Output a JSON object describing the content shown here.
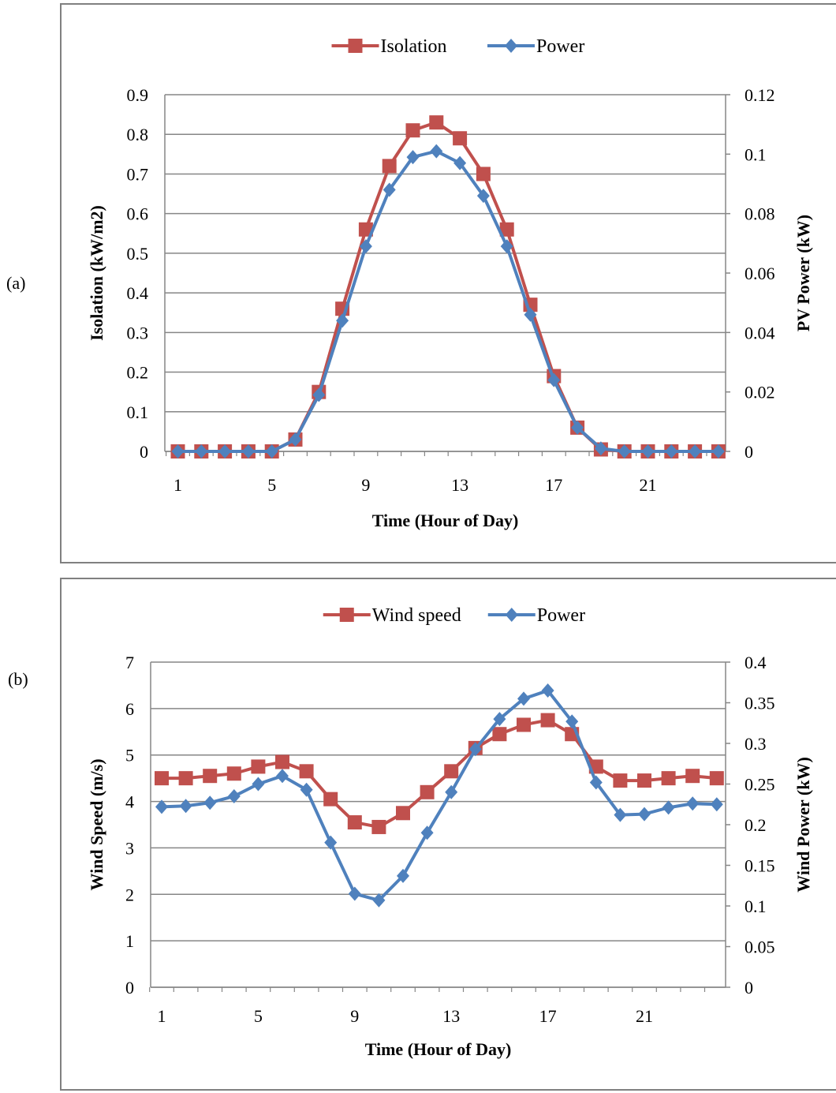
{
  "panels": [
    {
      "label": "(a)",
      "chart_data": {
        "type": "line",
        "title": "",
        "xlabel": "Time (Hour of Day)",
        "ylabel_left": "Isolation (kW/m2)",
        "ylabel_right": "PV Power (kW)",
        "x": [
          1,
          2,
          3,
          4,
          5,
          6,
          7,
          8,
          9,
          10,
          11,
          12,
          13,
          14,
          15,
          16,
          17,
          18,
          19,
          20,
          21,
          22,
          23,
          24
        ],
        "xticks": [
          "1",
          "5",
          "9",
          "13",
          "17",
          "21"
        ],
        "xtick_values": [
          1,
          5,
          9,
          13,
          17,
          21
        ],
        "ylim_left": [
          0,
          0.9
        ],
        "yticks_left": [
          "0",
          "0.1",
          "0.2",
          "0.3",
          "0.4",
          "0.5",
          "0.6",
          "0.7",
          "0.8",
          "0.9"
        ],
        "ylim_right": [
          0,
          0.12
        ],
        "yticks_right": [
          "0",
          "0.02",
          "0.04",
          "0.06",
          "0.08",
          "0.1",
          "0.12"
        ],
        "grid": true,
        "legend_position": "top-center",
        "series": [
          {
            "name": "Isolation",
            "axis": "left",
            "color": "#c0504d",
            "marker": "square",
            "values": [
              0,
              0,
              0,
              0,
              0,
              0.03,
              0.15,
              0.36,
              0.56,
              0.72,
              0.81,
              0.83,
              0.79,
              0.7,
              0.56,
              0.37,
              0.19,
              0.06,
              0.005,
              0,
              0,
              0,
              0,
              0
            ]
          },
          {
            "name": "Power",
            "axis": "right",
            "color": "#4f81bd",
            "marker": "diamond",
            "values": [
              0,
              0,
              0,
              0,
              0,
              0.004,
              0.019,
              0.044,
              0.069,
              0.088,
              0.099,
              0.101,
              0.097,
              0.086,
              0.069,
              0.046,
              0.024,
              0.008,
              0.001,
              0,
              0,
              0,
              0,
              0
            ]
          }
        ]
      }
    },
    {
      "label": "(b)",
      "chart_data": {
        "type": "line",
        "title": "",
        "xlabel": "Time (Hour of Day)",
        "ylabel_left": "Wind Speed (m/s)",
        "ylabel_right": "Wind Power (kW)",
        "x": [
          1,
          2,
          3,
          4,
          5,
          6,
          7,
          8,
          9,
          10,
          11,
          12,
          13,
          14,
          15,
          16,
          17,
          18,
          19,
          20,
          21,
          22,
          23,
          24
        ],
        "xticks": [
          "1",
          "5",
          "9",
          "13",
          "17",
          "21"
        ],
        "xtick_values": [
          1,
          5,
          9,
          13,
          17,
          21
        ],
        "ylim_left": [
          0,
          7
        ],
        "yticks_left": [
          "0",
          "1",
          "2",
          "3",
          "4",
          "5",
          "6",
          "7"
        ],
        "ylim_right": [
          0,
          0.4
        ],
        "yticks_right": [
          "0",
          "0.05",
          "0.1",
          "0.15",
          "0.2",
          "0.25",
          "0.3",
          "0.35",
          "0.4"
        ],
        "grid": true,
        "legend_position": "top-center",
        "series": [
          {
            "name": "Wind speed",
            "axis": "left",
            "color": "#c0504d",
            "marker": "square",
            "values": [
              4.5,
              4.5,
              4.55,
              4.6,
              4.75,
              4.85,
              4.65,
              4.05,
              3.55,
              3.45,
              3.75,
              4.2,
              4.65,
              5.15,
              5.45,
              5.65,
              5.75,
              5.45,
              4.75,
              4.45,
              4.45,
              4.5,
              4.55,
              4.5
            ]
          },
          {
            "name": "Power",
            "axis": "right",
            "color": "#4f81bd",
            "marker": "diamond",
            "values": [
              0.222,
              0.223,
              0.227,
              0.235,
              0.25,
              0.26,
              0.243,
              0.178,
              0.115,
              0.107,
              0.137,
              0.19,
              0.24,
              0.293,
              0.33,
              0.355,
              0.365,
              0.327,
              0.252,
              0.212,
              0.213,
              0.221,
              0.226,
              0.225
            ]
          }
        ]
      }
    }
  ]
}
